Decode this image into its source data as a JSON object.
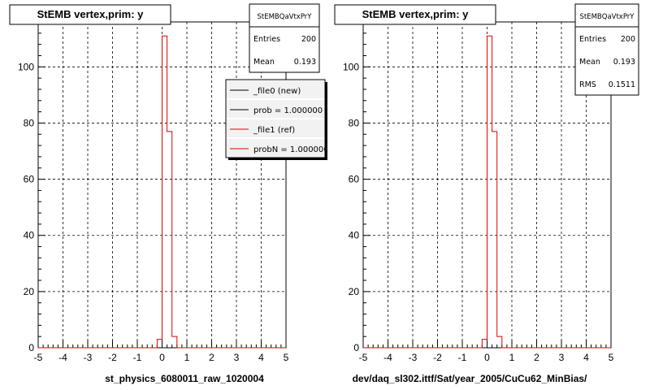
{
  "footer_note": "",
  "chart_data": [
    {
      "type": "histogram",
      "title": "StEMB  vertex,prim: y",
      "xlabel": "st_physics_6080011_raw_1020004",
      "ylabel": "",
      "xlim": [
        -5,
        5
      ],
      "ylim": [
        0,
        116
      ],
      "grid": true,
      "x_ticks": [
        "-5",
        "-4",
        "-3",
        "-2",
        "-1",
        "0",
        "1",
        "2",
        "3",
        "4",
        "5"
      ],
      "y_ticks": [
        "0",
        "20",
        "40",
        "60",
        "80",
        "100"
      ],
      "bin_edges": [
        -0.2,
        0.0,
        0.2,
        0.4,
        0.6
      ],
      "series": [
        {
          "name": "_file0 (new)",
          "color": "#000000",
          "values": []
        },
        {
          "name": "_file1 (ref)",
          "color": "#e00000",
          "values": [
            3,
            111,
            77,
            4
          ]
        }
      ],
      "stats_box": {
        "title": "StEMBQaVtxPrY",
        "rows": [
          {
            "label": "Entries",
            "value": "200"
          },
          {
            "label": "Mean",
            "value": "0.193"
          }
        ]
      },
      "legend": {
        "placement": "top-right",
        "entries": [
          {
            "label": "_file0 (new)",
            "color": "#000000"
          },
          {
            "label": "prob = 1.000000",
            "color": "#000000"
          },
          {
            "label": "_file1 (ref)",
            "color": "#e00000"
          },
          {
            "label": "probN = 1.000000",
            "color": "#e00000"
          }
        ]
      }
    },
    {
      "type": "histogram",
      "title": "StEMB  vertex,prim: y",
      "xlabel": "dev/daq_sl302.ittf/Sat/year_2005/CuCu62_MinBias/",
      "ylabel": "",
      "xlim": [
        -5,
        5
      ],
      "ylim": [
        0,
        116
      ],
      "grid": true,
      "x_ticks": [
        "-5",
        "-4",
        "-3",
        "-2",
        "-1",
        "0",
        "1",
        "2",
        "3",
        "4",
        "5"
      ],
      "y_ticks": [
        "0",
        "20",
        "40",
        "60",
        "80",
        "100"
      ],
      "bin_edges": [
        -0.2,
        0.0,
        0.2,
        0.4,
        0.6
      ],
      "series": [
        {
          "name": "",
          "color": "#e00000",
          "values": [
            3,
            111,
            77,
            4
          ]
        }
      ],
      "stats_box": {
        "title": "StEMBQaVtxPrY",
        "rows": [
          {
            "label": "Entries",
            "value": "200"
          },
          {
            "label": "Mean",
            "value": "0.193"
          },
          {
            "label": "RMS",
            "value": "0.1511"
          }
        ]
      },
      "legend": null
    }
  ]
}
